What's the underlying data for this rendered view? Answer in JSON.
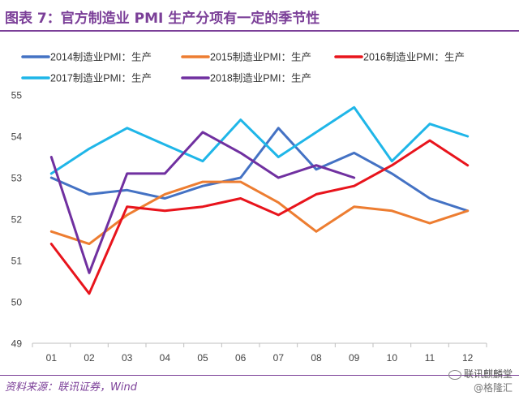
{
  "header": {
    "title": "图表 7：官方制造业 PMI 生产分项有一定的季节性"
  },
  "footer": {
    "source": "资料来源：联讯证券，Wind",
    "watermark_brand": "联讯麒麟堂",
    "watermark_sub": "@格隆汇",
    "watermark_icon": "wechat-icon"
  },
  "colors": {
    "title": "#7b3f98",
    "s2014": "#4472c4",
    "s2015": "#ed7d31",
    "s2016": "#e8141c",
    "s2017": "#1fb6e8",
    "s2018": "#7030a0"
  },
  "chart_data": {
    "type": "line",
    "title": "",
    "xlabel": "",
    "ylabel": "",
    "x": [
      "01",
      "02",
      "03",
      "04",
      "05",
      "06",
      "07",
      "08",
      "09",
      "10",
      "11",
      "12"
    ],
    "ylim": [
      49,
      55
    ],
    "yticks": [
      49,
      50,
      51,
      52,
      53,
      54,
      55
    ],
    "grid": false,
    "legend_position": "top",
    "series": [
      {
        "name": "2014制造业PMI：生产",
        "color": "#4472c4",
        "values": [
          53.0,
          52.6,
          52.7,
          52.5,
          52.8,
          53.0,
          54.2,
          53.2,
          53.6,
          53.1,
          52.5,
          52.2
        ]
      },
      {
        "name": "2015制造业PMI：生产",
        "color": "#ed7d31",
        "values": [
          51.7,
          51.4,
          52.1,
          52.6,
          52.9,
          52.9,
          52.4,
          51.7,
          52.3,
          52.2,
          51.9,
          52.2
        ]
      },
      {
        "name": "2016制造业PMI：生产",
        "color": "#e8141c",
        "values": [
          51.4,
          50.2,
          52.3,
          52.2,
          52.3,
          52.5,
          52.1,
          52.6,
          52.8,
          53.3,
          53.9,
          53.3
        ]
      },
      {
        "name": "2017制造业PMI：生产",
        "color": "#1fb6e8",
        "values": [
          53.1,
          53.7,
          54.2,
          53.8,
          53.4,
          54.4,
          53.5,
          54.1,
          54.7,
          53.4,
          54.3,
          54.0
        ]
      },
      {
        "name": "2018制造业PMI：生产",
        "color": "#7030a0",
        "values": [
          53.5,
          50.7,
          53.1,
          53.1,
          54.1,
          53.6,
          53.0,
          53.3,
          53.0,
          null,
          null,
          null
        ]
      }
    ]
  }
}
